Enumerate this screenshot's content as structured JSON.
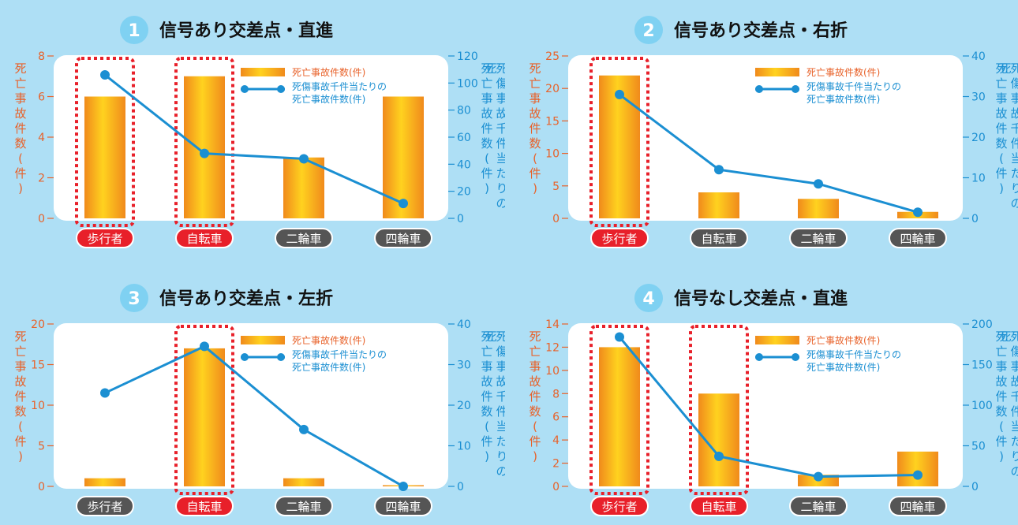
{
  "colors": {
    "background": "#aedff5",
    "plot_bg": "#ffffff",
    "bar_left": "#f08a1c",
    "bar_mid": "#ffd21f",
    "line": "#1b8fd2",
    "axis_left": "#e8622a",
    "axis_right": "#1b8fd2",
    "highlight": "#e8202a",
    "label_dark": "#555555",
    "number_badge": "#7fd1f2"
  },
  "legend": {
    "bar_label": "死亡事故件数(件)",
    "line_label_1": "死傷事故千件当たりの",
    "line_label_2": "死亡事故件数(件)"
  },
  "axis_titles": {
    "left": "死亡事故件数(件)",
    "right": "死傷事故千件当たりの死亡事故件数(件)"
  },
  "chart_data": [
    {
      "type": "bar",
      "number": "1",
      "title": "信号あり交差点・直進",
      "categories": [
        "歩行者",
        "自転車",
        "二輪車",
        "四輪車"
      ],
      "highlighted": [
        true,
        true,
        false,
        false
      ],
      "series": [
        {
          "name": "死亡事故件数(件)",
          "axis": "left",
          "values": [
            6,
            7,
            3,
            6
          ]
        },
        {
          "name": "死傷事故千件当たりの死亡事故件数(件)",
          "axis": "right",
          "type": "line",
          "values": [
            106,
            48,
            44,
            11
          ]
        }
      ],
      "ylim_left": [
        0,
        8
      ],
      "yticks_left": [
        0,
        2,
        4,
        6,
        8
      ],
      "ylim_right": [
        0,
        120
      ],
      "yticks_right": [
        0,
        20,
        40,
        60,
        80,
        100,
        120
      ],
      "grid": false,
      "legend_position": "top-right"
    },
    {
      "type": "bar",
      "number": "2",
      "title": "信号あり交差点・右折",
      "categories": [
        "歩行者",
        "自転車",
        "二輪車",
        "四輪車"
      ],
      "highlighted": [
        true,
        false,
        false,
        false
      ],
      "series": [
        {
          "name": "死亡事故件数(件)",
          "axis": "left",
          "values": [
            22,
            4,
            3,
            1
          ]
        },
        {
          "name": "死傷事故千件当たりの死亡事故件数(件)",
          "axis": "right",
          "type": "line",
          "values": [
            30.5,
            12,
            8.5,
            1.5
          ]
        }
      ],
      "ylim_left": [
        0,
        25
      ],
      "yticks_left": [
        0,
        5,
        10,
        15,
        20,
        25
      ],
      "ylim_right": [
        0,
        40
      ],
      "yticks_right": [
        0,
        10,
        20,
        30,
        40
      ],
      "grid": false,
      "legend_position": "top-right"
    },
    {
      "type": "bar",
      "number": "3",
      "title": "信号あり交差点・左折",
      "categories": [
        "歩行者",
        "自転車",
        "二輪車",
        "四輪車"
      ],
      "highlighted": [
        false,
        true,
        false,
        false
      ],
      "series": [
        {
          "name": "死亡事故件数(件)",
          "axis": "left",
          "values": [
            1,
            17,
            1,
            0
          ]
        },
        {
          "name": "死傷事故千件当たりの死亡事故件数(件)",
          "axis": "right",
          "type": "line",
          "values": [
            23,
            34.5,
            14,
            0
          ]
        }
      ],
      "ylim_left": [
        0,
        20
      ],
      "yticks_left": [
        0,
        5,
        10,
        15,
        20
      ],
      "ylim_right": [
        0,
        40
      ],
      "yticks_right": [
        0,
        10,
        20,
        30,
        40
      ],
      "grid": false,
      "legend_position": "top-right"
    },
    {
      "type": "bar",
      "number": "4",
      "title": "信号なし交差点・直進",
      "categories": [
        "歩行者",
        "自転車",
        "二輪車",
        "四輪車"
      ],
      "highlighted": [
        true,
        true,
        false,
        false
      ],
      "series": [
        {
          "name": "死亡事故件数(件)",
          "axis": "left",
          "values": [
            12,
            8,
            1,
            3
          ]
        },
        {
          "name": "死傷事故千件当たりの死亡事故件数(件)",
          "axis": "right",
          "type": "line",
          "values": [
            184,
            37,
            12,
            14
          ]
        }
      ],
      "ylim_left": [
        0,
        14
      ],
      "yticks_left": [
        0,
        2,
        4,
        6,
        8,
        10,
        12,
        14
      ],
      "ylim_right": [
        0,
        200
      ],
      "yticks_right": [
        0,
        50,
        100,
        150,
        200
      ],
      "grid": false,
      "legend_position": "top-right"
    }
  ]
}
